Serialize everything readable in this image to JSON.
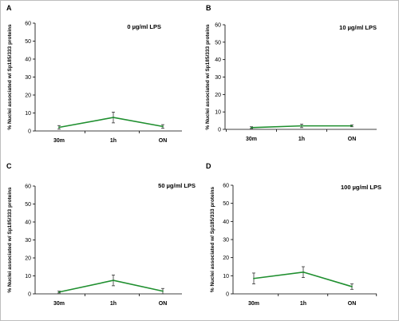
{
  "colors": {
    "line": "#1f8f2f",
    "axis": "#000000",
    "text": "#000000",
    "border": "#bdbdbd"
  },
  "chart_data": [
    {
      "type": "line",
      "panel_label": "A",
      "title": "0 µg/ml LPS",
      "ylabel": "% Nuclei associated w/ Sp185/333 proteins",
      "xlabel": "",
      "categories": [
        "30m",
        "1h",
        "ON"
      ],
      "ylim": [
        0,
        60
      ],
      "yticks": [
        0,
        10,
        20,
        30,
        40,
        50,
        60
      ],
      "values": [
        2,
        7.5,
        2.5
      ],
      "errors": [
        1,
        3,
        1
      ],
      "grid": false,
      "legend": "none"
    },
    {
      "type": "line",
      "panel_label": "B",
      "title": "10 µg/ml LPS",
      "ylabel": "% Nuclei associated w/ Sp185/333 proteins",
      "xlabel": "",
      "categories": [
        "30m",
        "1h",
        "ON"
      ],
      "ylim": [
        0,
        60
      ],
      "yticks": [
        0,
        10,
        20,
        30,
        40,
        50,
        60
      ],
      "values": [
        1,
        2,
        2
      ],
      "errors": [
        0.5,
        1,
        0.5
      ],
      "grid": false,
      "legend": "none"
    },
    {
      "type": "line",
      "panel_label": "C",
      "title": "50 µg/ml LPS",
      "ylabel": "% Nuclei associated w/ Sp185/333 proteins",
      "xlabel": "",
      "categories": [
        "30m",
        "1h",
        "ON"
      ],
      "ylim": [
        0,
        60
      ],
      "yticks": [
        0,
        10,
        20,
        30,
        40,
        50,
        60
      ],
      "values": [
        1,
        7.5,
        1.5
      ],
      "errors": [
        0.5,
        3,
        1.5
      ],
      "grid": false,
      "legend": "none"
    },
    {
      "type": "line",
      "panel_label": "D",
      "title": "100 µg/ml LPS",
      "ylabel": "% Nuclei associated w/ Sp185/333 proteins",
      "xlabel": "",
      "categories": [
        "30m",
        "1h",
        "ON"
      ],
      "ylim": [
        0,
        60
      ],
      "yticks": [
        0,
        10,
        20,
        30,
        40,
        50,
        60
      ],
      "values": [
        8.5,
        12,
        4
      ],
      "errors": [
        3,
        3,
        1.5
      ],
      "grid": false,
      "legend": "none"
    }
  ]
}
